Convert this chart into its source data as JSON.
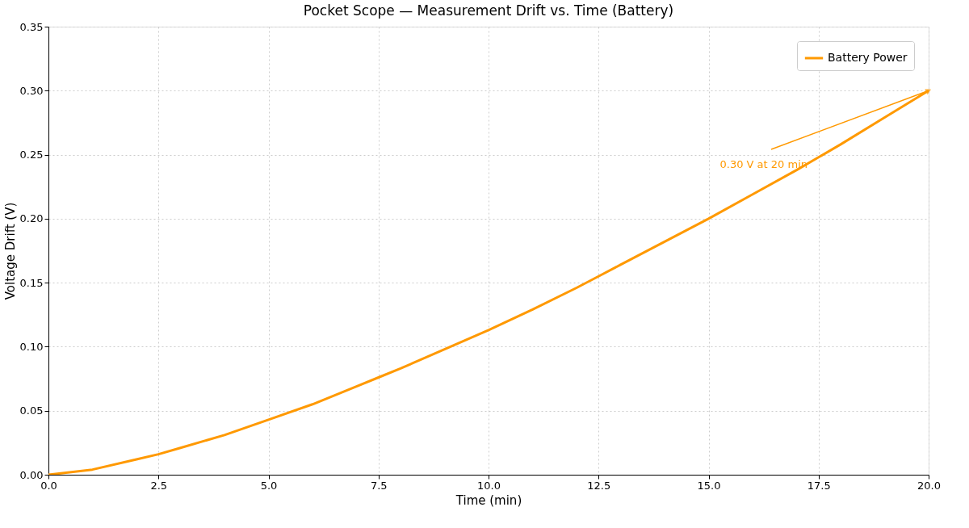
{
  "chart_data": {
    "type": "line",
    "title": "Pocket Scope — Measurement Drift vs. Time (Battery)",
    "xlabel": "Time (min)",
    "ylabel": "Voltage Drift (V)",
    "x": [
      0,
      1,
      2,
      2.5,
      3,
      4,
      5,
      6,
      7,
      7.5,
      8,
      9,
      10,
      11,
      12,
      12.5,
      13,
      14,
      15,
      16,
      17,
      17.5,
      18,
      19,
      20
    ],
    "series": [
      {
        "name": "Battery Power",
        "color": "#ff9900",
        "values": [
          0,
          0.004,
          0.012,
          0.016,
          0.021,
          0.031,
          0.043,
          0.055,
          0.069,
          0.076,
          0.083,
          0.098,
          0.113,
          0.129,
          0.146,
          0.155,
          0.164,
          0.182,
          0.2,
          0.219,
          0.238,
          0.248,
          0.258,
          0.279,
          0.3
        ]
      }
    ],
    "xlim": [
      0,
      20
    ],
    "xticks": [
      {
        "value": 0,
        "label": "0.0"
      },
      {
        "value": 2.5,
        "label": "2.5"
      },
      {
        "value": 5,
        "label": "5.0"
      },
      {
        "value": 7.5,
        "label": "7.5"
      },
      {
        "value": 10,
        "label": "10.0"
      },
      {
        "value": 12.5,
        "label": "12.5"
      },
      {
        "value": 15,
        "label": "15.0"
      },
      {
        "value": 17.5,
        "label": "17.5"
      },
      {
        "value": 20,
        "label": "20.0"
      }
    ],
    "ylim": [
      0,
      0.35
    ],
    "yticks": [
      {
        "value": 0,
        "label": "0.00"
      },
      {
        "value": 0.05,
        "label": "0.05"
      },
      {
        "value": 0.1,
        "label": "0.10"
      },
      {
        "value": 0.15,
        "label": "0.15"
      },
      {
        "value": 0.2,
        "label": "0.20"
      },
      {
        "value": 0.25,
        "label": "0.25"
      },
      {
        "value": 0.3,
        "label": "0.30"
      },
      {
        "value": 0.35,
        "label": "0.35"
      }
    ],
    "annotations": [
      {
        "text": "0.30 V at 20 min",
        "x": 20,
        "y": 0.3
      }
    ],
    "grid": true,
    "legend": "top right",
    "line_style": "solid",
    "marker": "none"
  }
}
